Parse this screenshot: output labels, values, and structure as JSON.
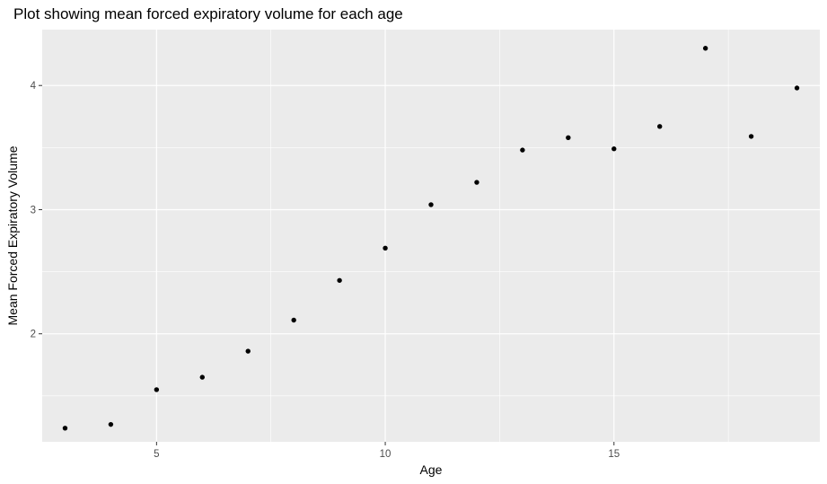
{
  "chart_data": {
    "type": "scatter",
    "title": "Plot showing mean forced expiratory volume for each age",
    "xlabel": "Age",
    "ylabel": "Mean Forced Expiratory Volume",
    "xlim": [
      2.5,
      19.5
    ],
    "ylim": [
      1.13,
      4.45
    ],
    "xticks": [
      5,
      10,
      15
    ],
    "yticks": [
      2,
      3,
      4
    ],
    "xminor": [
      7.5,
      12.5,
      17.5
    ],
    "yminor": [
      1.5,
      2.5,
      3.5
    ],
    "grid": true,
    "colors": {
      "panel": "#ebebeb",
      "grid": "#ffffff",
      "points": "#000000"
    },
    "x": [
      3,
      4,
      5,
      6,
      7,
      8,
      9,
      10,
      11,
      12,
      13,
      14,
      15,
      16,
      17,
      18,
      19
    ],
    "y": [
      1.24,
      1.27,
      1.55,
      1.65,
      1.86,
      2.11,
      2.43,
      2.69,
      3.04,
      3.22,
      3.48,
      3.58,
      3.49,
      3.67,
      4.3,
      3.59,
      3.98
    ]
  }
}
